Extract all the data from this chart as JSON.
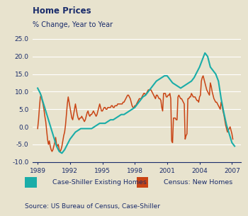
{
  "title": "Home Prices",
  "subtitle": "% Change, Year to Year",
  "source": "Source: US Bureau of Census, Case-Shiller",
  "background_color": "#e8e3ce",
  "plot_bg_color": "#e8e3ce",
  "legend1": "Case-Shiller Existing Homes",
  "legend2": "Census: New Homes",
  "color_cs": "#1aada8",
  "color_census": "#c94414",
  "ylim": [
    -10.0,
    25.0
  ],
  "yticks": [
    -10.0,
    -5.0,
    0.0,
    5.0,
    10.0,
    15.0,
    20.0,
    25.0
  ],
  "xlabel_years": [
    1989,
    1992,
    1995,
    1998,
    2001,
    2004,
    2007
  ],
  "title_color": "#1a2c6b",
  "axis_color": "#1a2c6b",
  "tick_color": "#1a2c6b",
  "cs_x": [
    1989.0,
    1989.25,
    1989.5,
    1989.75,
    1990.0,
    1990.25,
    1990.5,
    1990.75,
    1991.0,
    1991.25,
    1991.5,
    1991.75,
    1992.0,
    1992.25,
    1992.5,
    1992.75,
    1993.0,
    1993.25,
    1993.5,
    1993.75,
    1994.0,
    1994.25,
    1994.5,
    1994.75,
    1995.0,
    1995.25,
    1995.5,
    1995.75,
    1996.0,
    1996.25,
    1996.5,
    1996.75,
    1997.0,
    1997.25,
    1997.5,
    1997.75,
    1998.0,
    1998.25,
    1998.5,
    1998.75,
    1999.0,
    1999.25,
    1999.5,
    1999.75,
    2000.0,
    2000.25,
    2000.5,
    2000.75,
    2001.0,
    2001.25,
    2001.5,
    2001.75,
    2002.0,
    2002.25,
    2002.5,
    2002.75,
    2003.0,
    2003.25,
    2003.5,
    2003.75,
    2004.0,
    2004.25,
    2004.5,
    2004.75,
    2005.0,
    2005.25,
    2005.5,
    2005.75,
    2006.0,
    2006.25,
    2006.5,
    2006.75,
    2007.0,
    2007.25
  ],
  "cs_y": [
    11.0,
    9.5,
    7.0,
    4.5,
    2.0,
    -0.5,
    -3.0,
    -5.5,
    -7.0,
    -7.5,
    -6.5,
    -5.0,
    -3.5,
    -2.5,
    -1.5,
    -1.0,
    -0.5,
    -0.5,
    -0.5,
    -0.5,
    -0.5,
    0.0,
    0.5,
    1.0,
    1.0,
    1.0,
    1.5,
    2.0,
    2.0,
    2.5,
    3.0,
    3.5,
    3.5,
    4.0,
    4.5,
    5.0,
    5.5,
    6.5,
    7.5,
    8.5,
    9.0,
    10.0,
    11.0,
    12.0,
    13.0,
    13.5,
    14.0,
    14.5,
    14.5,
    13.5,
    12.5,
    12.0,
    11.5,
    11.0,
    11.5,
    12.0,
    12.5,
    13.0,
    14.0,
    15.5,
    17.0,
    19.0,
    21.0,
    20.0,
    17.0,
    16.0,
    15.0,
    13.0,
    8.0,
    4.0,
    0.5,
    -2.0,
    -4.5,
    -5.5
  ],
  "cen_x": [
    1989.0,
    1989.083,
    1989.167,
    1989.25,
    1989.333,
    1989.417,
    1989.5,
    1989.583,
    1989.667,
    1989.75,
    1989.833,
    1989.917,
    1990.0,
    1990.083,
    1990.167,
    1990.25,
    1990.333,
    1990.417,
    1990.5,
    1990.583,
    1990.667,
    1990.75,
    1990.833,
    1990.917,
    1991.0,
    1991.083,
    1991.167,
    1991.25,
    1991.333,
    1991.417,
    1991.5,
    1991.583,
    1991.667,
    1991.75,
    1991.833,
    1991.917,
    1992.0,
    1992.083,
    1992.167,
    1992.25,
    1992.333,
    1992.417,
    1992.5,
    1992.583,
    1992.667,
    1992.75,
    1992.833,
    1992.917,
    1993.0,
    1993.083,
    1993.167,
    1993.25,
    1993.333,
    1993.417,
    1993.5,
    1993.583,
    1993.667,
    1993.75,
    1993.833,
    1993.917,
    1994.0,
    1994.083,
    1994.167,
    1994.25,
    1994.333,
    1994.417,
    1994.5,
    1994.583,
    1994.667,
    1994.75,
    1994.833,
    1994.917,
    1995.0,
    1995.083,
    1995.167,
    1995.25,
    1995.333,
    1995.417,
    1995.5,
    1995.583,
    1995.667,
    1995.75,
    1995.833,
    1995.917,
    1996.0,
    1996.083,
    1996.167,
    1996.25,
    1996.333,
    1996.417,
    1996.5,
    1996.583,
    1996.667,
    1996.75,
    1996.833,
    1996.917,
    1997.0,
    1997.083,
    1997.167,
    1997.25,
    1997.333,
    1997.417,
    1997.5,
    1997.583,
    1997.667,
    1997.75,
    1997.833,
    1997.917,
    1998.0,
    1998.083,
    1998.167,
    1998.25,
    1998.333,
    1998.417,
    1998.5,
    1998.583,
    1998.667,
    1998.75,
    1998.833,
    1998.917,
    1999.0,
    1999.083,
    1999.167,
    1999.25,
    1999.333,
    1999.417,
    1999.5,
    1999.583,
    1999.667,
    1999.75,
    1999.833,
    1999.917,
    2000.0,
    2000.083,
    2000.167,
    2000.25,
    2000.333,
    2000.417,
    2000.5,
    2000.583,
    2000.667,
    2000.75,
    2000.833,
    2000.917,
    2001.0,
    2001.083,
    2001.167,
    2001.25,
    2001.333,
    2001.417,
    2001.5,
    2001.583,
    2001.667,
    2001.75,
    2001.833,
    2001.917,
    2002.0,
    2002.083,
    2002.167,
    2002.25,
    2002.333,
    2002.417,
    2002.5,
    2002.583,
    2002.667,
    2002.75,
    2002.833,
    2002.917,
    2003.0,
    2003.083,
    2003.167,
    2003.25,
    2003.333,
    2003.417,
    2003.5,
    2003.583,
    2003.667,
    2003.75,
    2003.833,
    2003.917,
    2004.0,
    2004.083,
    2004.167,
    2004.25,
    2004.333,
    2004.417,
    2004.5,
    2004.583,
    2004.667,
    2004.75,
    2004.833,
    2004.917,
    2005.0,
    2005.083,
    2005.167,
    2005.25,
    2005.333,
    2005.417,
    2005.5,
    2005.583,
    2005.667,
    2005.75,
    2005.833,
    2005.917,
    2006.0,
    2006.083,
    2006.167,
    2006.25,
    2006.333,
    2006.417,
    2006.5,
    2006.583,
    2006.667,
    2006.75,
    2006.833,
    2006.917,
    2007.0,
    2007.083
  ],
  "cen_y": [
    -0.5,
    2.0,
    5.5,
    8.5,
    9.0,
    7.5,
    6.5,
    5.0,
    3.0,
    1.5,
    -1.0,
    -3.5,
    -5.0,
    -4.0,
    -5.5,
    -6.5,
    -7.0,
    -6.5,
    -5.5,
    -4.5,
    -3.0,
    -5.0,
    -5.5,
    -5.0,
    -6.5,
    -7.0,
    -6.5,
    -5.5,
    -4.0,
    -2.5,
    -1.5,
    0.5,
    3.5,
    6.5,
    8.5,
    7.0,
    5.5,
    4.0,
    2.5,
    2.0,
    3.5,
    5.0,
    6.5,
    5.0,
    3.5,
    2.5,
    2.0,
    2.5,
    2.5,
    3.0,
    2.5,
    2.0,
    1.5,
    2.0,
    3.0,
    4.0,
    4.5,
    3.5,
    3.0,
    3.5,
    3.5,
    4.0,
    4.5,
    4.0,
    3.5,
    3.0,
    3.5,
    4.5,
    5.5,
    6.5,
    5.5,
    4.5,
    4.5,
    5.0,
    5.5,
    5.5,
    5.0,
    5.0,
    5.5,
    5.5,
    5.5,
    5.5,
    6.0,
    6.0,
    5.5,
    5.5,
    6.0,
    6.0,
    6.0,
    6.5,
    6.5,
    6.5,
    6.5,
    6.5,
    6.5,
    7.0,
    7.0,
    7.5,
    8.0,
    8.5,
    9.0,
    9.0,
    8.5,
    8.0,
    7.0,
    6.0,
    5.5,
    5.5,
    6.0,
    6.0,
    6.5,
    7.0,
    7.5,
    8.0,
    8.0,
    8.0,
    8.5,
    9.0,
    9.5,
    9.5,
    9.0,
    9.5,
    10.0,
    10.5,
    10.5,
    10.5,
    10.5,
    10.0,
    9.5,
    9.0,
    8.5,
    8.0,
    9.0,
    9.0,
    8.5,
    8.0,
    8.0,
    7.5,
    5.5,
    4.5,
    9.5,
    9.5,
    9.5,
    8.5,
    8.5,
    9.0,
    9.0,
    9.5,
    8.0,
    -4.0,
    -4.5,
    2.5,
    2.5,
    2.5,
    2.0,
    2.0,
    8.5,
    9.0,
    8.5,
    8.0,
    8.0,
    7.5,
    7.0,
    6.5,
    -3.5,
    -2.5,
    -2.0,
    8.0,
    8.0,
    8.5,
    8.5,
    9.5,
    9.0,
    8.5,
    8.5,
    8.5,
    8.0,
    7.5,
    7.5,
    7.0,
    8.5,
    9.0,
    13.0,
    14.0,
    14.5,
    13.5,
    12.5,
    11.5,
    10.5,
    10.0,
    9.5,
    9.0,
    12.5,
    11.5,
    10.0,
    9.0,
    8.0,
    7.5,
    7.0,
    7.0,
    6.5,
    6.0,
    5.5,
    5.0,
    7.0,
    6.0,
    4.5,
    3.5,
    2.0,
    0.5,
    -0.5,
    -1.5,
    -1.0,
    -0.5,
    0.0,
    -1.0,
    -2.0,
    -3.5
  ]
}
